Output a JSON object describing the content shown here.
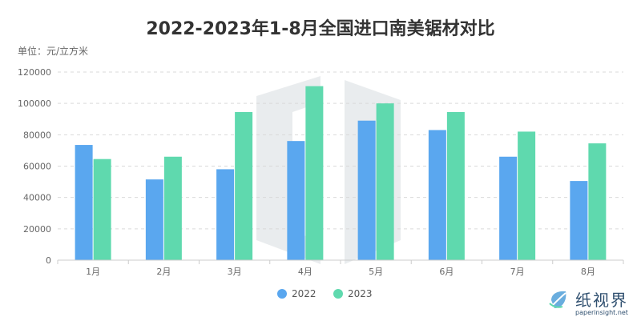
{
  "chart_data": {
    "type": "bar",
    "title": "2022-2023年1-8月全国进口南美锯材对比",
    "unit_label": "单位：元/立方米",
    "categories": [
      "1月",
      "2月",
      "3月",
      "4月",
      "5月",
      "6月",
      "7月",
      "8月"
    ],
    "series": [
      {
        "name": "2022",
        "color": "#5aa7ef",
        "values": [
          73500,
          51500,
          58000,
          76000,
          89000,
          83000,
          66000,
          50500
        ]
      },
      {
        "name": "2023",
        "color": "#5fd9ae",
        "values": [
          64500,
          66000,
          94500,
          111000,
          100000,
          94500,
          82000,
          74500
        ]
      }
    ],
    "ylim": [
      0,
      120000
    ],
    "yticks": [
      0,
      20000,
      40000,
      60000,
      80000,
      100000,
      120000
    ],
    "grid": true,
    "legend_position": "bottom"
  },
  "watermark": {
    "name": "纸视界",
    "url": "paperinsight.net"
  }
}
